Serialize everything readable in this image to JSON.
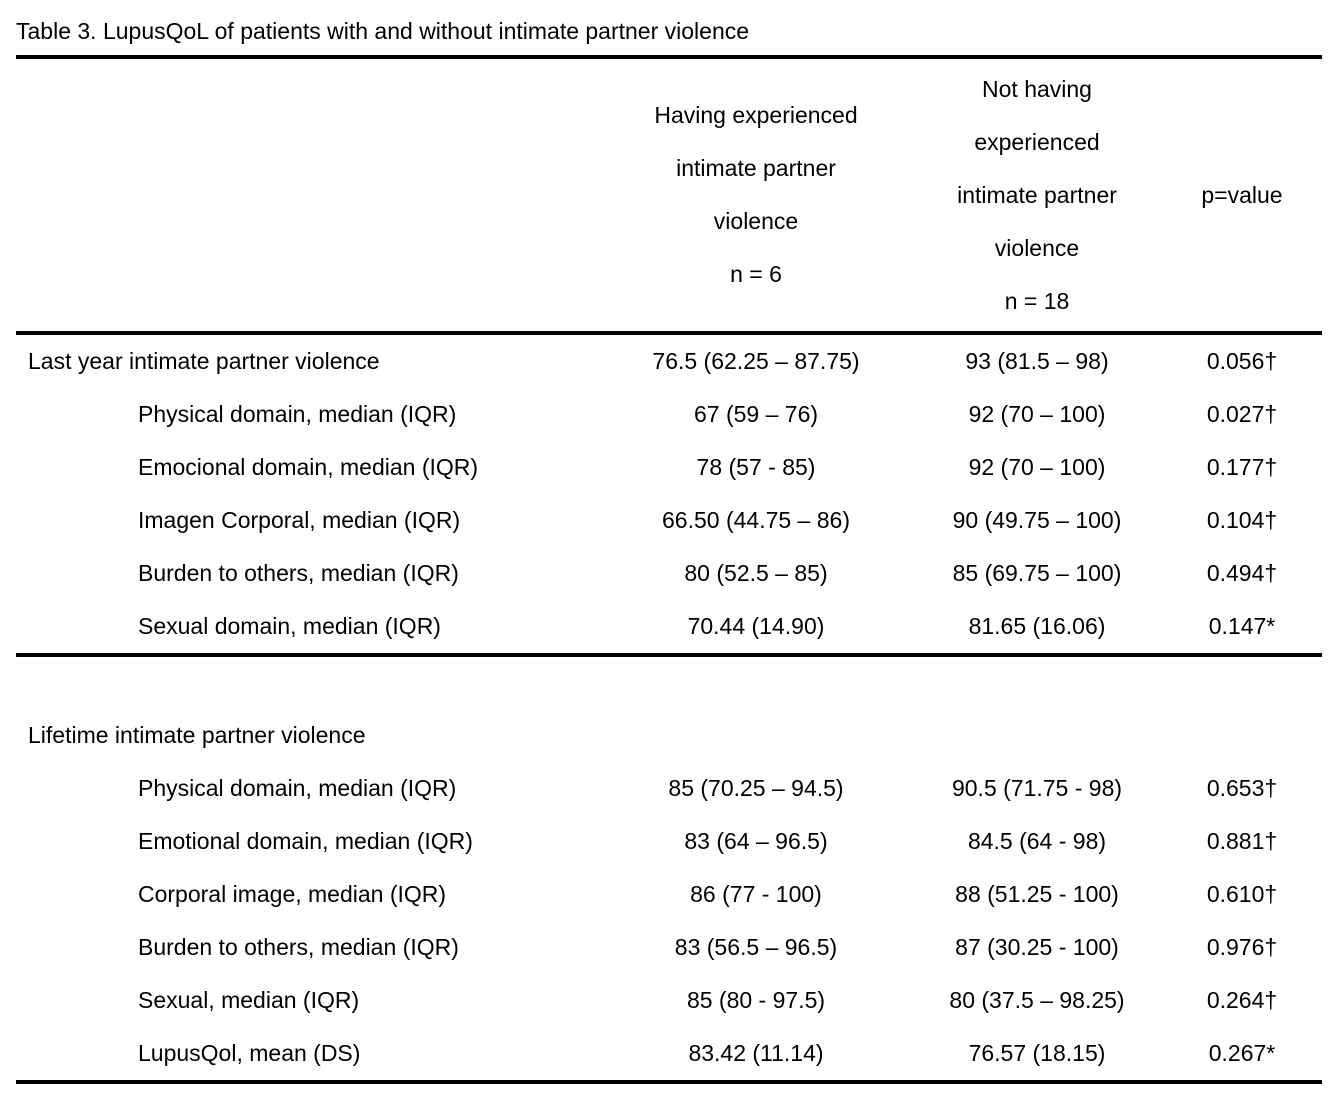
{
  "title": "Table 3. LupusQoL of patients with and without intimate partner violence",
  "header": {
    "ipv_yes_lines": [
      "Having experienced",
      "intimate partner",
      "violence",
      "n = 6"
    ],
    "ipv_no_lines": [
      "Not having",
      "experienced",
      "intimate partner",
      "violence",
      "n = 18"
    ],
    "p_label": "p=value"
  },
  "sections": [
    {
      "name": "last-year",
      "rows": [
        {
          "label": "Last year intimate partner violence",
          "indent": false,
          "ipv_yes": "76.5 (62.25 – 87.75)",
          "ipv_no": "93 (81.5 – 98)",
          "p": "0.056†"
        },
        {
          "label": "Physical domain, median (IQR)",
          "indent": true,
          "ipv_yes": "67 (59 – 76)",
          "ipv_no": "92 (70 – 100)",
          "p": "0.027†"
        },
        {
          "label": "Emocional domain, median (IQR)",
          "indent": true,
          "ipv_yes": "78 (57 - 85)",
          "ipv_no": "92 (70 – 100)",
          "p": "0.177†"
        },
        {
          "label": "Imagen Corporal, median (IQR)",
          "indent": true,
          "ipv_yes": "66.50 (44.75 – 86)",
          "ipv_no": "90 (49.75 – 100)",
          "p": "0.104†"
        },
        {
          "label": "Burden to others, median (IQR)",
          "indent": true,
          "ipv_yes": "80 (52.5 – 85)",
          "ipv_no": "85 (69.75 – 100)",
          "p": "0.494†"
        },
        {
          "label": "Sexual domain, median (IQR)",
          "indent": true,
          "ipv_yes": "70.44 (14.90)",
          "ipv_no": "81.65 (16.06)",
          "p": "0.147*"
        }
      ]
    },
    {
      "name": "lifetime",
      "rows": [
        {
          "label": "Lifetime intimate partner violence",
          "indent": false,
          "ipv_yes": "",
          "ipv_no": "",
          "p": ""
        },
        {
          "label": "Physical domain, median (IQR)",
          "indent": true,
          "ipv_yes": "85 (70.25 – 94.5)",
          "ipv_no": "90.5 (71.75 - 98)",
          "p": "0.653†"
        },
        {
          "label": "Emotional domain, median (IQR)",
          "indent": true,
          "ipv_yes": "83 (64 – 96.5)",
          "ipv_no": "84.5 (64 - 98)",
          "p": "0.881†"
        },
        {
          "label": "Corporal image, median (IQR)",
          "indent": true,
          "ipv_yes": "86 (77 - 100)",
          "ipv_no": "88 (51.25 - 100)",
          "p": "0.610†"
        },
        {
          "label": "Burden to others, median (IQR)",
          "indent": true,
          "ipv_yes": "83 (56.5 – 96.5)",
          "ipv_no": "87 (30.25 - 100)",
          "p": "0.976†"
        },
        {
          "label": "Sexual, median (IQR)",
          "indent": true,
          "ipv_yes": "85 (80 - 97.5)",
          "ipv_no": "80 (37.5 – 98.25)",
          "p": "0.264†"
        },
        {
          "label": "LupusQol, mean (DS)",
          "indent": true,
          "ipv_yes": "83.42 (11.14)",
          "ipv_no": "76.57 (18.15)",
          "p": "0.267*"
        }
      ]
    }
  ],
  "colors": {
    "text": "#000000",
    "background": "#ffffff",
    "rule": "#000000"
  }
}
